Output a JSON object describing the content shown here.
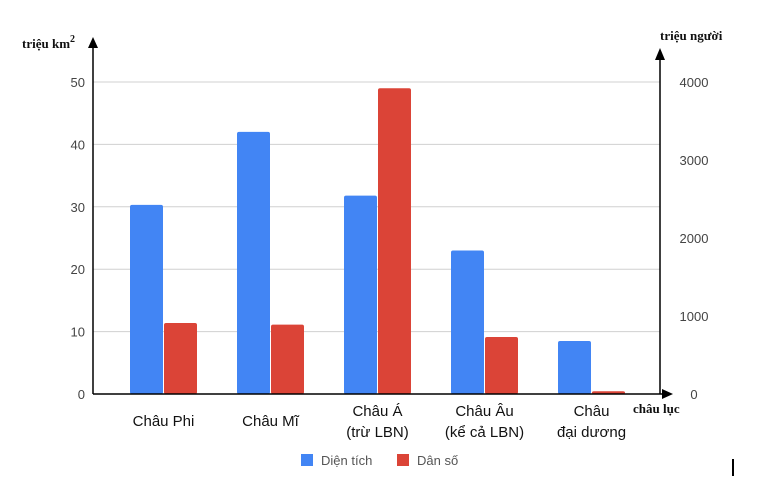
{
  "chart_data": {
    "type": "bar",
    "categories": [
      [
        "Châu Phi"
      ],
      [
        "Châu Mĩ"
      ],
      [
        "Châu Á",
        "(trừ LBN)"
      ],
      [
        "Châu Âu",
        "(kể cả LBN)"
      ],
      [
        "Châu",
        "đại dương"
      ]
    ],
    "series": [
      {
        "name": "Diện tích",
        "axis": "left",
        "color": "#4285f4",
        "values": [
          30.3,
          42.0,
          31.8,
          23.0,
          8.5
        ]
      },
      {
        "name": "Dân số",
        "axis": "right",
        "color": "#db4437",
        "values": [
          910,
          890,
          3920,
          730,
          35
        ]
      }
    ],
    "ylabel_left": "triệu km",
    "ylabel_left_sup": "2",
    "ylabel_right": "triệu người",
    "xlabel": "châu lục",
    "ylim_left": [
      0,
      50
    ],
    "ylim_right": [
      0,
      4000
    ],
    "yticks_left": [
      0,
      10,
      20,
      30,
      40,
      50
    ],
    "yticks_right": [
      0,
      1000,
      2000,
      3000,
      4000
    ],
    "grid": true,
    "legend_position": "bottom-center"
  }
}
